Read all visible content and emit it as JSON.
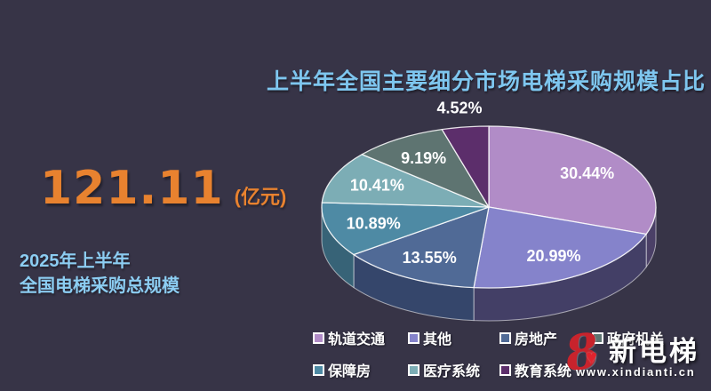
{
  "page": {
    "background": "#373447"
  },
  "header": {
    "title": "上半年全国主要细分市场电梯采购规模占比",
    "title_color": "#7ec6ef"
  },
  "summary": {
    "value": "121.11",
    "unit": "(亿元)",
    "value_color": "#e8822f",
    "caption_line1": "2025年上半年",
    "caption_line2": "全国电梯采购总规模",
    "caption_color": "#8ccdf2"
  },
  "chart_data": {
    "type": "pie",
    "title": "上半年全国主要细分市场电梯采购规模占比",
    "unit": "%",
    "series": [
      {
        "name": "轨道交通",
        "value": 30.44,
        "color": "#b18cc7",
        "side_color": "#4b4067"
      },
      {
        "name": "其他",
        "value": 20.99,
        "color": "#8583cb",
        "side_color": "#433f66"
      },
      {
        "name": "房地产",
        "value": 13.55,
        "color": "#506a96",
        "side_color": "#35466b"
      },
      {
        "name": "政府机关",
        "value": 9.19,
        "color": "#5e7471",
        "side_color": "#3e4d4b"
      },
      {
        "name": "保障房",
        "value": 10.89,
        "color": "#4e8aa4",
        "side_color": "#376377"
      },
      {
        "name": "医疗系统",
        "value": 10.41,
        "color": "#7cadb5",
        "side_color": "#567e85"
      },
      {
        "name": "教育系统",
        "value": 4.52,
        "color": "#5c2e6b",
        "side_color": "#3e1f49"
      }
    ],
    "layout": {
      "style": "3d",
      "start_angle_deg": 0,
      "clockwise": true,
      "sort": "descending",
      "legend_position": "bottom",
      "label_format": "{value}%"
    }
  },
  "logo": {
    "mark": "8",
    "heart": "♥",
    "brand": "新电梯",
    "url": "www.xindianti.cn",
    "accent": "#c8232c"
  }
}
